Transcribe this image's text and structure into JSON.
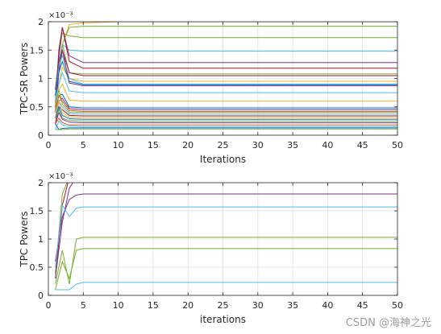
{
  "chart_data": [
    {
      "type": "line",
      "xlabel": "Iterations",
      "ylabel": "TPC-SR Powers",
      "y_exponent_label": "×10⁻³",
      "xlim": [
        0,
        50
      ],
      "ylim": [
        0,
        0.002
      ],
      "x_ticks": [
        0,
        5,
        10,
        15,
        20,
        25,
        30,
        35,
        40,
        45,
        50
      ],
      "y_ticks": [
        0,
        0.0005,
        0.001,
        0.0015,
        0.002
      ],
      "y_tick_labels": [
        "0",
        "0.5",
        "1",
        "1.5",
        "2"
      ],
      "grid": true,
      "series": [
        {
          "color": "#EDB120",
          "values": [
            0.0007,
            0.0012,
            0.0016,
            0.00195,
            0.00198,
            0.002,
            0.002
          ]
        },
        {
          "color": "#77AC30",
          "values": [
            0.0006,
            0.0011,
            0.0016,
            0.0019,
            0.00192,
            0.00192,
            0.00192
          ]
        },
        {
          "color": "#77AC30",
          "values": [
            0.0008,
            0.0014,
            0.0018,
            0.00175,
            0.00172,
            0.00172,
            0.00172
          ]
        },
        {
          "color": "#4DBEEE",
          "values": [
            0.0007,
            0.0013,
            0.0016,
            0.0015,
            0.00148,
            0.00148,
            0.00148
          ]
        },
        {
          "color": "#7E2F8E",
          "values": [
            0.0006,
            0.0014,
            0.0019,
            0.0014,
            0.00128,
            0.00128,
            0.00128
          ]
        },
        {
          "color": "#A2142F",
          "values": [
            0.0005,
            0.0015,
            0.0019,
            0.0013,
            0.00118,
            0.00118,
            0.00118
          ]
        },
        {
          "color": "#77AC30",
          "values": [
            0.0006,
            0.0012,
            0.0016,
            0.0011,
            0.00108,
            0.00108,
            0.00108
          ]
        },
        {
          "color": "#A2142F",
          "values": [
            0.0004,
            0.0011,
            0.0015,
            0.0011,
            0.00105,
            0.00105,
            0.00105
          ]
        },
        {
          "color": "#EDB120",
          "values": [
            0.0005,
            0.0009,
            0.0012,
            0.001,
            0.00095,
            0.00095,
            0.00095
          ]
        },
        {
          "color": "#4DBEEE",
          "values": [
            0.0007,
            0.0012,
            0.0014,
            0.001,
            0.0009,
            0.0009,
            0.0009
          ]
        },
        {
          "color": "#0072BD",
          "values": [
            0.0007,
            0.0011,
            0.0013,
            0.00095,
            0.00089,
            0.00089,
            0.00089
          ]
        },
        {
          "color": "#7E2F8E",
          "values": [
            0.0008,
            0.0013,
            0.0015,
            0.00092,
            0.00087,
            0.00087,
            0.00087
          ]
        },
        {
          "color": "#4DBEEE",
          "values": [
            0.0006,
            0.0009,
            0.0011,
            0.00078,
            0.00075,
            0.00075,
            0.00075
          ]
        },
        {
          "color": "#EDB120",
          "values": [
            0.0005,
            0.0008,
            0.0009,
            0.00062,
            0.0006,
            0.0006,
            0.0006
          ]
        },
        {
          "color": "#0072BD",
          "values": [
            0.0004,
            0.0007,
            0.00072,
            0.0005,
            0.00048,
            0.00048,
            0.00048
          ]
        },
        {
          "color": "#7E2F8E",
          "values": [
            0.0003,
            0.0006,
            0.00065,
            0.00047,
            0.00045,
            0.00045,
            0.00045
          ]
        },
        {
          "color": "#D95319",
          "values": [
            0.0004,
            0.0007,
            0.0006,
            0.00044,
            0.00042,
            0.00042,
            0.00042
          ]
        },
        {
          "color": "#77AC30",
          "values": [
            0.0005,
            0.0008,
            0.00055,
            0.00041,
            0.0004,
            0.0004,
            0.0004
          ]
        },
        {
          "color": "#4DBEEE",
          "values": [
            0.0003,
            0.0006,
            0.0005,
            0.00038,
            0.00037,
            0.00037,
            0.00037
          ]
        },
        {
          "color": "#A2142F",
          "values": [
            0.0002,
            0.0005,
            0.00045,
            0.00035,
            0.00034,
            0.00034,
            0.00034
          ]
        },
        {
          "color": "#EDB120",
          "values": [
            0.0004,
            0.0006,
            0.0004,
            0.00032,
            0.00031,
            0.00031,
            0.00031
          ]
        },
        {
          "color": "#0072BD",
          "values": [
            0.0003,
            0.0005,
            0.00035,
            0.00029,
            0.00028,
            0.00028,
            0.00028
          ]
        },
        {
          "color": "#77AC30",
          "values": [
            0.0003,
            0.00045,
            0.0003,
            0.00026,
            0.00025,
            0.00025,
            0.00025
          ]
        },
        {
          "color": "#7E2F8E",
          "values": [
            0.0002,
            0.0004,
            0.00028,
            0.00023,
            0.00022,
            0.00022,
            0.00022
          ]
        },
        {
          "color": "#D95319",
          "values": [
            0.0002,
            0.0003,
            0.00022,
            0.00018,
            0.00018,
            0.00018,
            0.00018
          ]
        },
        {
          "color": "#4DBEEE",
          "values": [
            0.0001,
            0.00025,
            0.00018,
            0.00016,
            0.00015,
            0.00015,
            0.00015
          ]
        },
        {
          "color": "#0072BD",
          "values": [
            0.0002,
            0.0001,
            0.00012,
            0.00013,
            0.00013,
            0.00013,
            0.00013
          ]
        },
        {
          "color": "#77AC30",
          "values": [
            0.0001,
            0.0001,
            0.0001,
            0.00011,
            0.00011,
            0.00011,
            0.00011
          ]
        }
      ],
      "x": [
        1,
        1.5,
        2,
        3,
        5,
        10,
        50
      ]
    },
    {
      "type": "line",
      "xlabel": "iterations",
      "ylabel": "TPC Powers",
      "y_exponent_label": "×10⁻³",
      "xlim": [
        0,
        50
      ],
      "ylim": [
        0,
        0.002
      ],
      "x_ticks": [
        0,
        5,
        10,
        15,
        20,
        25,
        30,
        35,
        40,
        45,
        50
      ],
      "y_ticks": [
        0,
        0.0005,
        0.001,
        0.0015,
        0.002
      ],
      "y_tick_labels": [
        "0",
        "0.5",
        "1",
        "1.5",
        "2"
      ],
      "grid": true,
      "series": [
        {
          "color": "#A2142F",
          "values": [
            0.0003,
            0.0016,
            0.0021,
            0.0021,
            0.0021,
            0.0021
          ]
        },
        {
          "color": "#77AC30",
          "values": [
            0.0004,
            0.0018,
            0.0021,
            0.0021,
            0.0021,
            0.0021
          ]
        },
        {
          "color": "#7E2F8E",
          "values": [
            0.0003,
            0.0013,
            0.0019,
            0.0021,
            0.0021,
            0.0021
          ]
        },
        {
          "color": "#7E2F8E",
          "values": [
            0.0006,
            0.0014,
            0.0017,
            0.00178,
            0.0018,
            0.0018
          ]
        },
        {
          "color": "#4DBEEE",
          "values": [
            0.0005,
            0.0016,
            0.0014,
            0.00155,
            0.00157,
            0.00157
          ]
        },
        {
          "color": "#77AC30",
          "values": [
            0.0002,
            0.0008,
            0.0002,
            0.001,
            0.00103,
            0.00103
          ]
        },
        {
          "color": "#77AC30",
          "values": [
            0.0001,
            0.0006,
            0.0003,
            0.0008,
            0.00083,
            0.00083
          ]
        },
        {
          "color": "#4DBEEE",
          "values": [
            0.0001,
            0.0001,
            0.0001,
            0.0002,
            0.00023,
            0.00023
          ]
        }
      ],
      "x": [
        1,
        2,
        3,
        4,
        5,
        50
      ]
    }
  ],
  "watermark": "CSDN @海神之光"
}
